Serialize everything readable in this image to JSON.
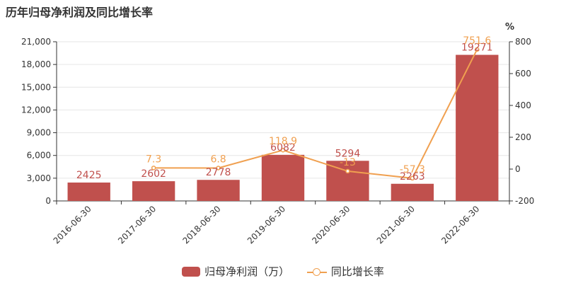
{
  "chart_data": {
    "type": "bar",
    "title": "历年归母净利润及同比增长率",
    "categories": [
      "2016-06-30",
      "2017-06-30",
      "2018-06-30",
      "2019-06-30",
      "2020-06-30",
      "2021-06-30",
      "2022-06-30"
    ],
    "series": [
      {
        "name": "归母净利润（万）",
        "type": "bar",
        "axis": "left",
        "color": "#c0504d",
        "values": [
          2425,
          2602,
          2778,
          6082,
          5294,
          2263,
          19271
        ],
        "labels": [
          "2425",
          "2602",
          "2778",
          "6082",
          "5294",
          "2263",
          "19271"
        ]
      },
      {
        "name": "同比增长率",
        "type": "line",
        "axis": "right",
        "color": "#f0a050",
        "values": [
          null,
          7.3,
          6.8,
          118.9,
          -13,
          -57.3,
          751.6
        ],
        "labels": [
          "",
          "7.3",
          "6.8",
          "118.9",
          "-13",
          "-57.3",
          "751.6"
        ]
      }
    ],
    "y_left": {
      "ylim": [
        0,
        21000
      ],
      "ticks": [
        0,
        3000,
        6000,
        9000,
        12000,
        15000,
        18000,
        21000
      ],
      "tick_labels": [
        "0",
        "3,000",
        "6,000",
        "9,000",
        "12,000",
        "15,000",
        "18,000",
        "21,000"
      ]
    },
    "y_right": {
      "label": "%",
      "ylim": [
        -200,
        800
      ],
      "ticks": [
        -200,
        0,
        200,
        400,
        600,
        800
      ],
      "tick_labels": [
        "-200",
        "0",
        "200",
        "400",
        "600",
        "800"
      ]
    },
    "grid": true,
    "legend_position": "bottom"
  }
}
